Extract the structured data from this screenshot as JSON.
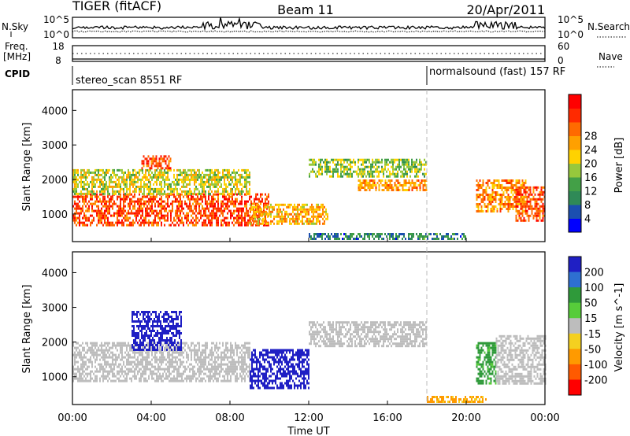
{
  "header": {
    "radar": "TIGER (fitACF)",
    "beam": "Beam 11",
    "date": "20/Apr/2011"
  },
  "top_panel": {
    "left_label": "N.Sky",
    "right_label": "N.Search",
    "left_ticks": [
      "10^5",
      "10^0"
    ],
    "right_ticks": [
      "10^5",
      "10^0"
    ]
  },
  "freq_panel": {
    "left_label_line1": "Freq.",
    "left_label_line2": "[MHz]",
    "right_label": "Nave",
    "left_ticks": [
      "18",
      "8"
    ],
    "right_ticks": [
      "60",
      "0"
    ]
  },
  "cpid": {
    "label": "CPID",
    "segments": [
      {
        "text": "stereo_scan 8551 RF",
        "start_hour": 0
      },
      {
        "text": "normalsound (fast) 157 RF",
        "start_hour": 18
      }
    ]
  },
  "x_axis": {
    "label": "Time UT",
    "ticks": [
      "00:00",
      "04:00",
      "08:00",
      "12:00",
      "16:00",
      "20:00",
      "00:00"
    ]
  },
  "colors": {
    "ground_scatter": "#bdbdbd"
  },
  "chart_data": [
    {
      "type": "heatmap",
      "title": "",
      "xlabel": "",
      "ylabel": "Slant Range [km]",
      "xlim": [
        0,
        24
      ],
      "ylim": [
        200,
        4600
      ],
      "yticks": [
        "1000",
        "2000",
        "3000",
        "4000"
      ],
      "colorbar": {
        "label": "Power [dB]",
        "ticks": [
          "4",
          "8",
          "12",
          "16",
          "20",
          "24",
          "28"
        ],
        "colors": [
          "#0000ff",
          "#1b4fb0",
          "#2f8a57",
          "#43a047",
          "#96c83c",
          "#ffd200",
          "#ffa000",
          "#ff6a00",
          "#ff2a00",
          "#ff0000"
        ]
      },
      "regions": [
        {
          "t": [
            0,
            10
          ],
          "r": [
            700,
            1600
          ],
          "value": 26
        },
        {
          "t": [
            0,
            9
          ],
          "r": [
            1600,
            2300
          ],
          "value": 16
        },
        {
          "t": [
            3.5,
            5
          ],
          "r": [
            2300,
            2700
          ],
          "value": 26
        },
        {
          "t": [
            9,
            13
          ],
          "r": [
            700,
            1300
          ],
          "value": 20
        },
        {
          "t": [
            12,
            18
          ],
          "r": [
            2100,
            2600
          ],
          "value": 14
        },
        {
          "t": [
            14.5,
            18
          ],
          "r": [
            1700,
            2000
          ],
          "value": 22
        },
        {
          "t": [
            12,
            20
          ],
          "r": [
            250,
            450
          ],
          "value": 8
        },
        {
          "t": [
            20.5,
            23
          ],
          "r": [
            1100,
            2000
          ],
          "value": 22
        },
        {
          "t": [
            22.5,
            24
          ],
          "r": [
            800,
            1800
          ],
          "value": 26
        }
      ]
    },
    {
      "type": "heatmap",
      "title": "",
      "xlabel": "Time UT",
      "ylabel": "Slant Range [km]",
      "xlim": [
        0,
        24
      ],
      "ylim": [
        200,
        4600
      ],
      "yticks": [
        "1000",
        "2000",
        "3000",
        "4000"
      ],
      "colorbar": {
        "label": "Velocity [m s^-1]",
        "ticks": [
          "200",
          "100",
          "50",
          "15",
          "-15",
          "-50",
          "-100",
          "-200"
        ],
        "colors": [
          "#1f1fc4",
          "#2e6fd1",
          "#2f9a3a",
          "#57cc3a",
          "#bdbdbd",
          "#f4d020",
          "#ff9a00",
          "#ff5a00",
          "#ff0000"
        ]
      },
      "regions": [
        {
          "t": [
            0,
            9
          ],
          "r": [
            900,
            2000
          ],
          "value": 0
        },
        {
          "t": [
            3,
            5.5
          ],
          "r": [
            1800,
            2900
          ],
          "value": 200
        },
        {
          "t": [
            9,
            12
          ],
          "r": [
            700,
            1800
          ],
          "value": 200
        },
        {
          "t": [
            12,
            18
          ],
          "r": [
            1900,
            2600
          ],
          "value": 0
        },
        {
          "t": [
            18,
            21
          ],
          "r": [
            250,
            450
          ],
          "value": -60
        },
        {
          "t": [
            20.5,
            21.5
          ],
          "r": [
            800,
            2000
          ],
          "value": 40
        },
        {
          "t": [
            21.5,
            24
          ],
          "r": [
            800,
            2200
          ],
          "value": 0
        }
      ]
    }
  ]
}
